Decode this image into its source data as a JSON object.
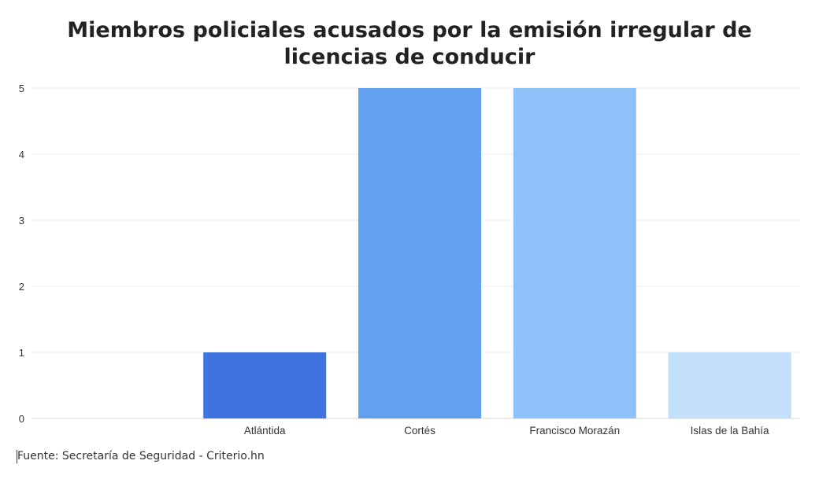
{
  "chart_data": {
    "type": "bar",
    "title": "Miembros policiales acusados por la emisión irregular de licencias de conducir",
    "categories": [
      "",
      "Atlántida",
      "Cortés",
      "Francisco Morazán",
      "Islas de la Bahía"
    ],
    "values": [
      0,
      1,
      5,
      5,
      1
    ],
    "colors": [
      "#3e73e0",
      "#3e73e0",
      "#63a1f0",
      "#8fc0f7",
      "#c3e0fb"
    ],
    "xlabel": "",
    "ylabel": "",
    "ylim": [
      0,
      5
    ],
    "yticks": [
      0,
      1,
      2,
      3,
      4,
      5
    ],
    "grid": true,
    "source": "Fuente: Secretaría de Seguridad - Criterio.hn"
  }
}
